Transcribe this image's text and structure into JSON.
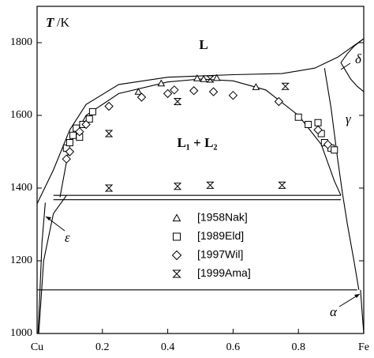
{
  "chart_data": {
    "type": "scatter",
    "ylabel": {
      "symbol": "T",
      "unit": "/K"
    },
    "region_labels": {
      "liquid": "L",
      "gap": "L₁ + L₂",
      "delta": "δ",
      "gamma": "γ",
      "epsilon": "ε",
      "alpha": "α"
    },
    "xlim": [
      0,
      1
    ],
    "ylim": [
      1000,
      1900
    ],
    "xticks": [
      {
        "value": 0,
        "label": "Cu"
      },
      0.2,
      0.4,
      0.6,
      0.8,
      {
        "value": 1,
        "label": "Fe"
      }
    ],
    "yticks": [
      1000,
      1200,
      1400,
      1600,
      1800
    ],
    "series": [
      {
        "name": "[1958Nak]",
        "marker": "triangle",
        "color": "#000000",
        "x": [
          0.31,
          0.38,
          0.49,
          0.51,
          0.55,
          0.67
        ],
        "values": [
          1665,
          1688,
          1702,
          1700,
          1703,
          1678
        ]
      },
      {
        "name": "[1989Eld]",
        "marker": "square",
        "color": "#000000",
        "x": [
          0.09,
          0.1,
          0.11,
          0.12,
          0.13,
          0.14,
          0.16,
          0.17,
          0.8,
          0.83,
          0.86,
          0.87,
          0.88,
          0.9,
          0.91
        ],
        "values": [
          1510,
          1525,
          1545,
          1565,
          1540,
          1575,
          1590,
          1610,
          1595,
          1575,
          1580,
          1550,
          1525,
          1510,
          1505
        ]
      },
      {
        "name": "[1997Wil]",
        "marker": "diamond",
        "color": "#000000",
        "x": [
          0.09,
          0.1,
          0.13,
          0.15,
          0.22,
          0.32,
          0.4,
          0.42,
          0.48,
          0.54,
          0.6,
          0.74,
          0.86,
          0.89
        ],
        "values": [
          1480,
          1500,
          1555,
          1575,
          1625,
          1650,
          1660,
          1670,
          1668,
          1665,
          1655,
          1638,
          1560,
          1520
        ]
      },
      {
        "name": "[1999Ama]",
        "marker": "hourglass",
        "color": "#000000",
        "x": [
          0.22,
          0.22,
          0.43,
          0.43,
          0.53,
          0.53,
          0.75,
          0.76
        ],
        "values": [
          1550,
          1400,
          1638,
          1405,
          1700,
          1408,
          1408,
          1680
        ]
      }
    ],
    "boundaries": [
      {
        "x": [
          0.07,
          0.1,
          0.15,
          0.25,
          0.4,
          0.5,
          0.6,
          0.7,
          0.8,
          0.87,
          0.91,
          0.93
        ],
        "y": [
          1375,
          1520,
          1600,
          1660,
          1692,
          1700,
          1695,
          1670,
          1600,
          1520,
          1420,
          1380
        ]
      },
      {
        "x": [
          0,
          0.05,
          0.1,
          0.15,
          0.25,
          0.4,
          0.6,
          0.75,
          0.85,
          0.92,
          1
        ],
        "y": [
          1357,
          1450,
          1560,
          1630,
          1685,
          1705,
          1712,
          1715,
          1730,
          1760,
          1811
        ]
      },
      {
        "x": [
          0.88,
          0.9,
          0.92,
          0.935
        ],
        "y": [
          1730,
          1620,
          1480,
          1385
        ]
      },
      {
        "x": [
          0.93,
          0.95,
          0.97,
          1
        ],
        "y": [
          1745,
          1770,
          1790,
          1811
        ]
      },
      {
        "x": [
          0.93,
          0.96,
          0.98,
          1
        ],
        "y": [
          1745,
          1700,
          1680,
          1665
        ]
      },
      {
        "x": [
          0.05,
          0.93
        ],
        "y": [
          1380,
          1380
        ]
      },
      {
        "x": [
          0.05,
          0.93
        ],
        "y": [
          1368,
          1368
        ]
      },
      {
        "x": [
          0.0,
          0.98
        ],
        "y": [
          1120,
          1120
        ]
      },
      {
        "x": [
          0.025,
          0.015,
          0.008,
          0.003
        ],
        "y": [
          1360,
          1250,
          1100,
          1000
        ]
      },
      {
        "x": [
          0.005,
          0.02,
          0.05,
          0.09
        ],
        "y": [
          1000,
          1200,
          1330,
          1380
        ]
      },
      {
        "x": [
          0.935,
          0.95,
          0.97,
          0.985
        ],
        "y": [
          1385,
          1300,
          1200,
          1120
        ]
      },
      {
        "x": [
          0.99,
          0.995,
          1
        ],
        "y": [
          1120,
          1060,
          1000
        ]
      }
    ]
  }
}
